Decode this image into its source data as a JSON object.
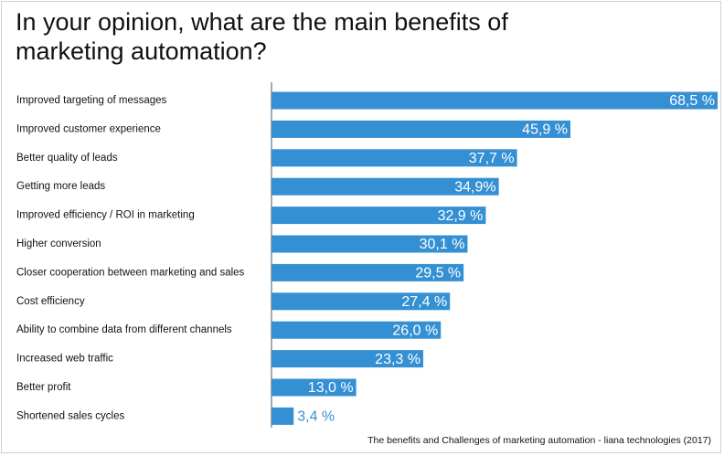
{
  "chart_data": {
    "type": "bar",
    "orientation": "horizontal",
    "title": "In your opinion, what are the main benefits of marketing automation?",
    "source": "The benefits and Challenges of marketing automation - liana technologies (2017)",
    "categories": [
      "Improved targeting of messages",
      "Improved customer experience",
      "Better quality of leads",
      "Getting more leads",
      "Improved efficiency / ROI in marketing",
      "Higher conversion",
      "Closer cooperation between marketing and sales",
      "Cost efficiency",
      "Ability to combine data from different channels",
      "Increased web traffic",
      "Better profit",
      "Shortened sales cycles"
    ],
    "values": [
      68.5,
      45.9,
      37.7,
      34.9,
      32.9,
      30.1,
      29.5,
      27.4,
      26.0,
      23.3,
      13.0,
      3.4
    ],
    "value_labels": [
      "68,5 %",
      "45,9 %",
      "37,7 %",
      "34,9%",
      "32,9 %",
      "30,1 %",
      "29,5 %",
      "27,4 %",
      "26,0 %",
      "23,3 %",
      "13,0 %",
      "3,4 %"
    ],
    "color": "#3490d3"
  }
}
